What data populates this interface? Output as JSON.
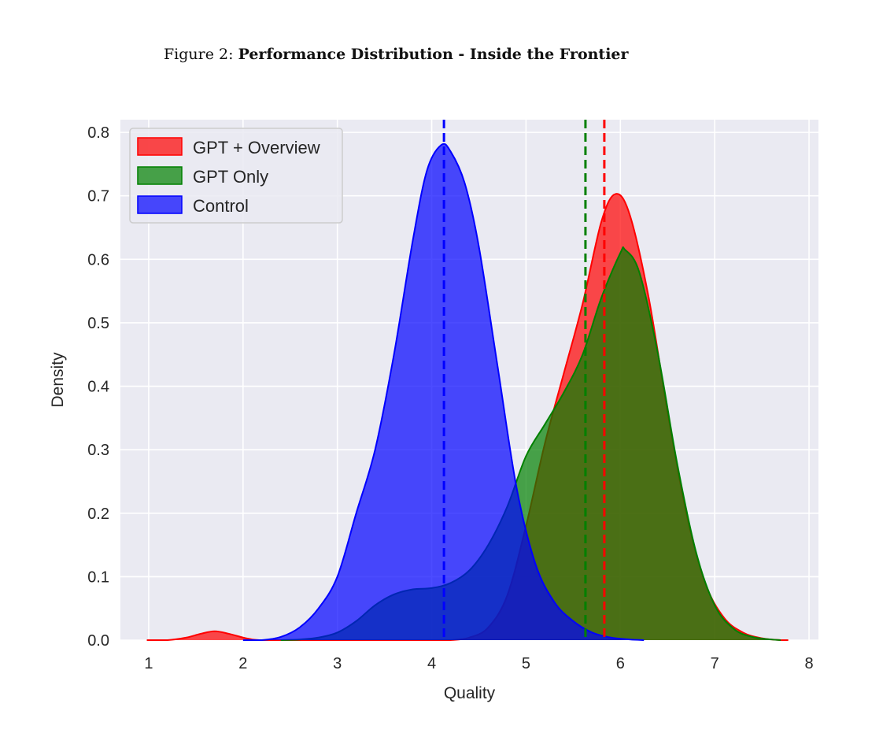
{
  "figure": {
    "prefix": "Figure 2:",
    "title": "Performance Distribution - Inside the Frontier"
  },
  "chart_data": {
    "type": "area",
    "xlabel": "Quality",
    "ylabel": "Density",
    "xlim": [
      0.7,
      8.1
    ],
    "ylim": [
      0.0,
      0.82
    ],
    "xticks": [
      1,
      2,
      3,
      4,
      5,
      6,
      7,
      8
    ],
    "yticks": [
      0.0,
      0.1,
      0.2,
      0.3,
      0.4,
      0.5,
      0.6,
      0.7,
      0.8
    ],
    "ytick_labels": [
      "0.0",
      "0.1",
      "0.2",
      "0.3",
      "0.4",
      "0.5",
      "0.6",
      "0.7",
      "0.8"
    ],
    "grid": true,
    "legend_position": "top-left",
    "background": "#eaeaf2",
    "series": [
      {
        "name": "GPT + Overview",
        "color": "#ff0000",
        "mean": 5.83,
        "x": [
          0.98,
          1.2,
          1.4,
          1.55,
          1.7,
          1.85,
          2.0,
          2.1,
          2.2,
          2.4,
          2.6,
          2.8,
          3.0,
          3.2,
          3.4,
          3.6,
          3.8,
          4.0,
          4.2,
          4.4,
          4.6,
          4.8,
          5.0,
          5.2,
          5.4,
          5.6,
          5.8,
          5.95,
          6.1,
          6.3,
          6.5,
          6.7,
          6.9,
          7.1,
          7.3,
          7.5,
          7.7,
          7.78
        ],
        "y": [
          0.0,
          0.0,
          0.004,
          0.01,
          0.014,
          0.01,
          0.004,
          0.001,
          0.0,
          0.0,
          0.0,
          0.0,
          0.0,
          0.0,
          0.0,
          0.0,
          0.0,
          0.0,
          0.0,
          0.004,
          0.02,
          0.07,
          0.18,
          0.31,
          0.42,
          0.53,
          0.66,
          0.703,
          0.67,
          0.54,
          0.36,
          0.2,
          0.09,
          0.035,
          0.012,
          0.003,
          0.0,
          0.0
        ]
      },
      {
        "name": "GPT Only",
        "color": "#008000",
        "mean": 5.63,
        "x": [
          2.4,
          2.6,
          2.8,
          3.0,
          3.2,
          3.4,
          3.6,
          3.8,
          4.0,
          4.2,
          4.4,
          4.6,
          4.8,
          5.0,
          5.2,
          5.4,
          5.6,
          5.8,
          6.0,
          6.05,
          6.2,
          6.4,
          6.6,
          6.8,
          7.0,
          7.2,
          7.4,
          7.6,
          7.7
        ],
        "y": [
          0.0,
          0.001,
          0.004,
          0.012,
          0.03,
          0.055,
          0.072,
          0.08,
          0.082,
          0.09,
          0.11,
          0.15,
          0.21,
          0.29,
          0.34,
          0.39,
          0.45,
          0.54,
          0.61,
          0.615,
          0.58,
          0.45,
          0.28,
          0.14,
          0.055,
          0.018,
          0.005,
          0.001,
          0.0
        ]
      },
      {
        "name": "Control",
        "color": "#0000ff",
        "mean": 4.13,
        "x": [
          2.0,
          2.2,
          2.4,
          2.6,
          2.8,
          3.0,
          3.2,
          3.4,
          3.6,
          3.8,
          3.95,
          4.1,
          4.2,
          4.35,
          4.5,
          4.7,
          4.9,
          5.1,
          5.3,
          5.5,
          5.7,
          5.9,
          6.1,
          6.25
        ],
        "y": [
          0.0,
          0.0,
          0.005,
          0.02,
          0.05,
          0.1,
          0.2,
          0.3,
          0.45,
          0.63,
          0.74,
          0.78,
          0.77,
          0.72,
          0.62,
          0.43,
          0.24,
          0.12,
          0.06,
          0.03,
          0.012,
          0.004,
          0.001,
          0.0
        ]
      }
    ]
  }
}
